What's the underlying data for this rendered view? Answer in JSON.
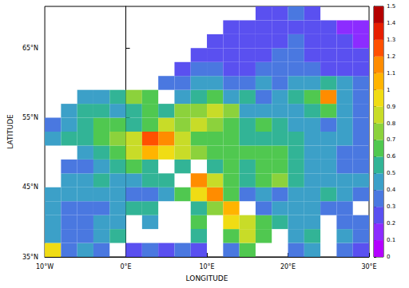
{
  "chart_data": {
    "type": "heatmap",
    "xlabel": "LONGITUDE",
    "ylabel": "LATITUDE",
    "x": [
      -9,
      -7,
      -5,
      -3,
      -1,
      1,
      3,
      5,
      7,
      9,
      11,
      13,
      15,
      17,
      19,
      21,
      23,
      25,
      27,
      29
    ],
    "y": [
      36,
      38,
      40,
      42,
      44,
      46,
      48,
      50,
      52,
      54,
      56,
      58,
      60,
      62,
      64,
      66,
      68,
      70
    ],
    "values": [
      [
        0.9,
        0.3,
        0.4,
        0.3,
        null,
        0.2,
        0.3,
        0.2,
        0.3,
        0.2,
        null,
        0.3,
        0.6,
        null,
        null,
        0.3,
        0.4,
        null,
        0.3,
        0.2
      ],
      [
        0.4,
        0.3,
        0.3,
        0.4,
        0.5,
        null,
        null,
        null,
        null,
        0.5,
        null,
        0.6,
        0.8,
        0.6,
        null,
        0.4,
        0.5,
        null,
        0.4,
        0.3
      ],
      [
        0.4,
        0.3,
        0.3,
        0.4,
        0.4,
        null,
        0.4,
        null,
        null,
        0.6,
        null,
        0.9,
        0.8,
        0.6,
        0.5,
        0.4,
        0.4,
        null,
        0.3,
        0.3
      ],
      [
        0.4,
        0.3,
        0.3,
        0.3,
        0.4,
        0.5,
        0.5,
        null,
        null,
        0.5,
        0.7,
        1.0,
        null,
        0.3,
        0.4,
        0.4,
        0.4,
        0.3,
        0.3,
        null
      ],
      [
        0.4,
        0.4,
        0.4,
        0.4,
        0.4,
        0.3,
        0.3,
        0.4,
        0.6,
        0.9,
        1.1,
        0.6,
        0.3,
        0.4,
        0.3,
        0.4,
        0.4,
        0.5,
        0.4,
        0.3
      ],
      [
        null,
        0.4,
        0.4,
        0.5,
        0.4,
        0.4,
        0.5,
        0.5,
        null,
        1.1,
        0.8,
        0.6,
        0.5,
        0.6,
        0.7,
        0.5,
        0.4,
        0.4,
        0.4,
        0.4
      ],
      [
        null,
        0.3,
        0.3,
        0.4,
        0.5,
        0.6,
        0.5,
        null,
        0.5,
        null,
        0.5,
        0.6,
        0.5,
        0.6,
        0.6,
        0.5,
        0.4,
        0.4,
        0.3,
        0.3
      ],
      [
        null,
        null,
        0.4,
        0.5,
        0.6,
        0.8,
        1.0,
        0.9,
        0.8,
        0.7,
        0.6,
        0.6,
        0.6,
        0.6,
        0.6,
        0.5,
        0.4,
        0.4,
        0.3,
        0.3
      ],
      [
        0.4,
        0.5,
        0.5,
        0.6,
        0.7,
        0.8,
        1.2,
        1.1,
        0.8,
        0.6,
        0.6,
        0.6,
        0.5,
        0.5,
        0.5,
        0.5,
        0.4,
        0.4,
        0.4,
        0.3
      ],
      [
        0.3,
        0.4,
        0.5,
        0.6,
        0.6,
        0.5,
        0.6,
        0.8,
        0.7,
        0.8,
        0.7,
        0.6,
        0.5,
        0.6,
        0.5,
        0.4,
        0.4,
        0.3,
        0.4,
        0.3
      ],
      [
        null,
        0.4,
        0.5,
        0.5,
        0.4,
        0.5,
        0.6,
        0.5,
        0.7,
        0.7,
        0.8,
        0.7,
        0.4,
        0.4,
        0.4,
        0.4,
        0.5,
        0.6,
        0.4,
        0.3
      ],
      [
        null,
        null,
        0.4,
        0.4,
        0.5,
        0.7,
        0.6,
        null,
        0.4,
        0.5,
        0.6,
        0.4,
        0.5,
        0.3,
        0.4,
        0.5,
        0.6,
        1.1,
        0.4,
        0.3
      ],
      [
        null,
        null,
        null,
        null,
        null,
        null,
        null,
        0.3,
        0.3,
        0.4,
        0.4,
        0.3,
        0.3,
        0.4,
        0.3,
        0.4,
        0.4,
        0.5,
        0.4,
        0.3
      ],
      [
        null,
        null,
        null,
        null,
        null,
        null,
        null,
        null,
        0.2,
        0.3,
        0.3,
        0.2,
        0.2,
        0.3,
        0.3,
        0.3,
        0.3,
        0.2,
        0.2,
        0.2
      ],
      [
        null,
        null,
        null,
        null,
        null,
        null,
        null,
        null,
        null,
        0.2,
        0.2,
        0.2,
        0.2,
        0.2,
        0.3,
        0.3,
        0.2,
        0.2,
        0.2,
        0.2
      ],
      [
        null,
        null,
        null,
        null,
        null,
        null,
        null,
        null,
        null,
        null,
        0.2,
        0.2,
        0.2,
        0.2,
        0.2,
        0.3,
        0.2,
        0.2,
        0.2,
        0.1
      ],
      [
        null,
        null,
        null,
        null,
        null,
        null,
        null,
        null,
        null,
        null,
        null,
        0.2,
        0.2,
        0.2,
        0.2,
        0.2,
        0.2,
        0.2,
        0.1,
        0.1
      ],
      [
        null,
        null,
        null,
        null,
        null,
        null,
        null,
        null,
        null,
        null,
        null,
        null,
        null,
        0.2,
        0.2,
        0.3,
        0.2,
        null,
        null,
        null
      ]
    ],
    "xlim": [
      -10,
      30
    ],
    "xticks": [
      {
        "value": -10,
        "label": "10°W"
      },
      {
        "value": 0,
        "label": "0°E"
      },
      {
        "value": 10,
        "label": "10°E"
      },
      {
        "value": 20,
        "label": "20°E"
      },
      {
        "value": 30,
        "label": "30°E"
      }
    ],
    "ylim": [
      35,
      71
    ],
    "yticks": [
      {
        "value": 35,
        "label": "35°N"
      },
      {
        "value": 45,
        "label": "45°N"
      },
      {
        "value": 55,
        "label": "55°N"
      },
      {
        "value": 65,
        "label": "65°N"
      }
    ],
    "colorbar": {
      "lim": [
        0,
        1.5
      ],
      "ticks": [
        0,
        0.1,
        0.2,
        0.3,
        0.4,
        0.5,
        0.6,
        0.7,
        0.8,
        0.9,
        1,
        1.1,
        1.2,
        1.3,
        1.4,
        1.5
      ]
    }
  }
}
